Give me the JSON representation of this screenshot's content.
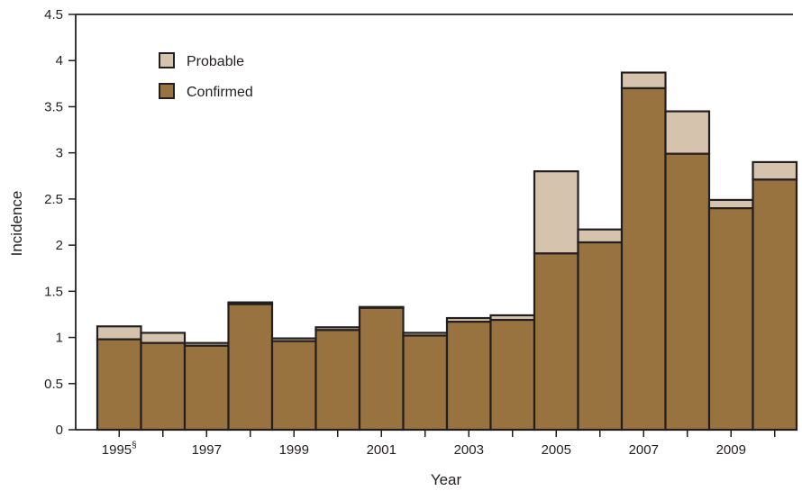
{
  "chart_data": {
    "type": "bar",
    "stacked": true,
    "title": "",
    "xlabel": "Year",
    "ylabel": "Incidence",
    "ylim": [
      0,
      4.5
    ],
    "yticks": [
      "0",
      "0.5",
      "1",
      "1.5",
      "2",
      "2.5",
      "3",
      "3.5",
      "4",
      "4.5"
    ],
    "categories": [
      "1995",
      "1996",
      "1997",
      "1998",
      "1999",
      "2000",
      "2001",
      "2002",
      "2003",
      "2004",
      "2005",
      "2006",
      "2007",
      "2008",
      "2009",
      "2010"
    ],
    "xtick_labels": [
      {
        "category": "1995",
        "text": "1995",
        "sup": "§"
      },
      {
        "category": "1997",
        "text": "1997",
        "sup": ""
      },
      {
        "category": "1999",
        "text": "1999",
        "sup": ""
      },
      {
        "category": "2001",
        "text": "2001",
        "sup": ""
      },
      {
        "category": "2003",
        "text": "2003",
        "sup": ""
      },
      {
        "category": "2005",
        "text": "2005",
        "sup": ""
      },
      {
        "category": "2007",
        "text": "2007",
        "sup": ""
      },
      {
        "category": "2009",
        "text": "2009",
        "sup": ""
      }
    ],
    "series": [
      {
        "name": "Confirmed",
        "color": "#98733f",
        "values": [
          0.98,
          0.94,
          0.91,
          1.36,
          0.96,
          1.08,
          1.32,
          1.02,
          1.17,
          1.19,
          1.91,
          2.03,
          3.7,
          2.99,
          2.4,
          2.71
        ]
      },
      {
        "name": "Probable",
        "color": "#d6c3ad",
        "values": [
          0.14,
          0.11,
          0.03,
          0.02,
          0.03,
          0.03,
          0.01,
          0.03,
          0.04,
          0.05,
          0.89,
          0.14,
          0.17,
          0.46,
          0.09,
          0.19
        ]
      }
    ],
    "legend": {
      "placement": "top-left",
      "entries": [
        {
          "label": "Probable",
          "color": "#d6c3ad"
        },
        {
          "label": "Confirmed",
          "color": "#98733f"
        }
      ]
    },
    "grid": false,
    "colors": {
      "axis": "#231f20",
      "text": "#231f20"
    }
  }
}
